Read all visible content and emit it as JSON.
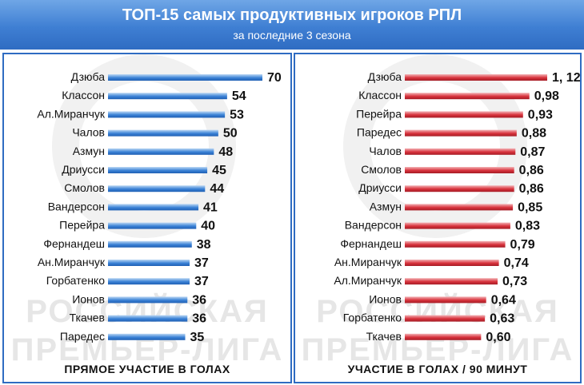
{
  "header": {
    "title": "ТОП-15 самых продуктивных игроков РПЛ",
    "subtitle": "за последние 3 сезона"
  },
  "watermark": {
    "line1": "РОССИЙСКАЯ",
    "line2": "ПРЕМЬЕР-ЛИГА"
  },
  "colors": {
    "header_blue": "#3f7fd3",
    "bar_blue": "#3b82d6",
    "bar_red": "#d8323c",
    "text": "#111111"
  },
  "chart_data": [
    {
      "type": "bar",
      "orientation": "horizontal",
      "footer": "ПРЯМОЕ УЧАСТИЕ В ГОЛАХ",
      "categories": [
        "Дзюба",
        "Классон",
        "Ал.Миранчук",
        "Чалов",
        "Азмун",
        "Дриусси",
        "Смолов",
        "Вандерсон",
        "Перейра",
        "Фернандеш",
        "Ан.Миранчук",
        "Горбатенко",
        "Ионов",
        "Ткачев",
        "Паредес"
      ],
      "values": [
        70,
        54,
        53,
        50,
        48,
        45,
        44,
        41,
        40,
        38,
        37,
        37,
        36,
        36,
        35
      ],
      "value_labels": [
        "70",
        "54",
        "53",
        "50",
        "48",
        "45",
        "44",
        "41",
        "40",
        "38",
        "37",
        "37",
        "36",
        "36",
        "35"
      ],
      "xlim": [
        0,
        70
      ],
      "grid": false,
      "legend": "none"
    },
    {
      "type": "bar",
      "orientation": "horizontal",
      "footer": "УЧАСТИЕ В ГОЛАХ / 90 МИНУТ",
      "categories": [
        "Дзюба",
        "Классон",
        "Перейра",
        "Паредес",
        "Чалов",
        "Смолов",
        "Дриусси",
        "Азмун",
        "Вандерсон",
        "Фернандеш",
        "Ан.Миранчук",
        "Ал.Миранчук",
        "Ионов",
        "Горбатенко",
        "Ткачев"
      ],
      "values": [
        1.12,
        0.98,
        0.93,
        0.88,
        0.87,
        0.86,
        0.86,
        0.85,
        0.83,
        0.79,
        0.74,
        0.73,
        0.64,
        0.63,
        0.6
      ],
      "value_labels": [
        "1, 12",
        "0,98",
        "0,93",
        "0,88",
        "0,87",
        "0,86",
        "0,86",
        "0,85",
        "0,83",
        "0,79",
        "0,74",
        "0,73",
        "0,64",
        "0,63",
        "0,60"
      ],
      "xlim": [
        0,
        1.12
      ],
      "grid": false,
      "legend": "none"
    }
  ]
}
